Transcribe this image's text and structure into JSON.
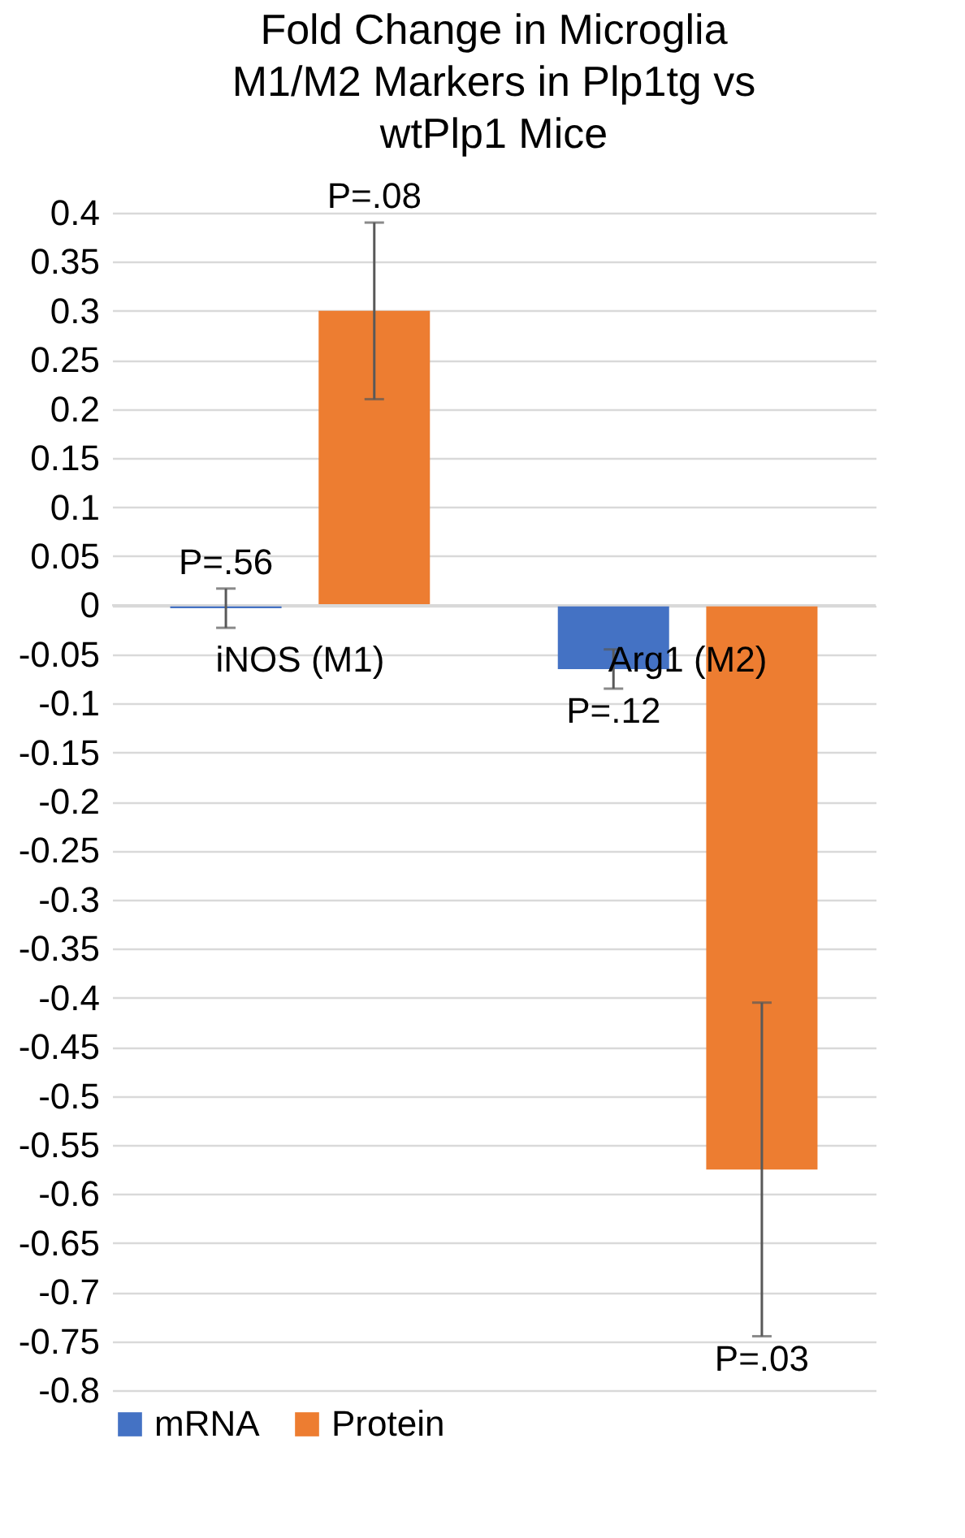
{
  "chart_data": {
    "type": "bar",
    "title": "Fold Change in Microglia\nM1/M2 Markers in Plp1tg vs\nwtPlp1 Mice",
    "categories": [
      "iNOS (M1)",
      "Arg1 (M2)"
    ],
    "series": [
      {
        "name": "mRNA",
        "color": "#4472c4",
        "values": [
          -0.003,
          -0.065
        ],
        "errors": [
          0.02,
          0.02
        ]
      },
      {
        "name": "Protein",
        "color": "#ed7d31",
        "values": [
          0.3,
          -0.575
        ],
        "errors": [
          0.09,
          0.17
        ]
      }
    ],
    "ylim": [
      -0.8,
      0.4
    ],
    "yticks": [
      -0.8,
      -0.75,
      -0.7,
      -0.65,
      -0.6,
      -0.55,
      -0.5,
      -0.45,
      -0.4,
      -0.35,
      -0.3,
      -0.25,
      -0.2,
      -0.15,
      -0.1,
      -0.05,
      0,
      0.05,
      0.1,
      0.15,
      0.2,
      0.25,
      0.3,
      0.35,
      0.4
    ],
    "annotations": [
      "P=.56",
      "P=.08",
      "P=.12",
      "P=.03"
    ],
    "grid": true,
    "legend": "bottom"
  }
}
